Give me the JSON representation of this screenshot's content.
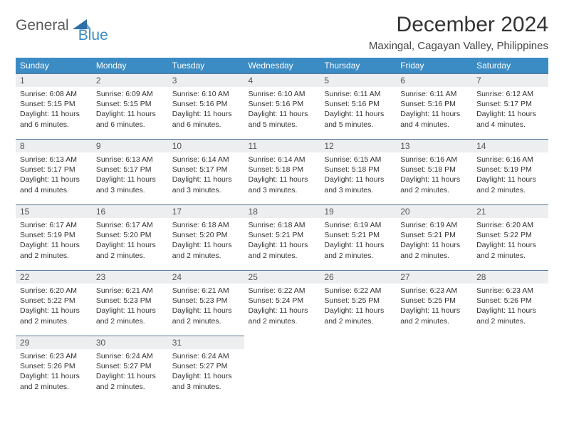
{
  "logo": {
    "part1": "General",
    "part2": "Blue"
  },
  "title": "December 2024",
  "location": "Maxingal, Cagayan Valley, Philippines",
  "colors": {
    "header_bg": "#3b8bc4",
    "header_text": "#ffffff",
    "daynum_bg": "#eceeef",
    "daynum_border": "#5a7a9a",
    "logo_gray": "#5a5a5a",
    "logo_blue": "#3b8bc4"
  },
  "weekdays": [
    "Sunday",
    "Monday",
    "Tuesday",
    "Wednesday",
    "Thursday",
    "Friday",
    "Saturday"
  ],
  "weeks": [
    [
      {
        "n": "1",
        "sr": "6:08 AM",
        "ss": "5:15 PM",
        "dl": "11 hours and 6 minutes."
      },
      {
        "n": "2",
        "sr": "6:09 AM",
        "ss": "5:15 PM",
        "dl": "11 hours and 6 minutes."
      },
      {
        "n": "3",
        "sr": "6:10 AM",
        "ss": "5:16 PM",
        "dl": "11 hours and 6 minutes."
      },
      {
        "n": "4",
        "sr": "6:10 AM",
        "ss": "5:16 PM",
        "dl": "11 hours and 5 minutes."
      },
      {
        "n": "5",
        "sr": "6:11 AM",
        "ss": "5:16 PM",
        "dl": "11 hours and 5 minutes."
      },
      {
        "n": "6",
        "sr": "6:11 AM",
        "ss": "5:16 PM",
        "dl": "11 hours and 4 minutes."
      },
      {
        "n": "7",
        "sr": "6:12 AM",
        "ss": "5:17 PM",
        "dl": "11 hours and 4 minutes."
      }
    ],
    [
      {
        "n": "8",
        "sr": "6:13 AM",
        "ss": "5:17 PM",
        "dl": "11 hours and 4 minutes."
      },
      {
        "n": "9",
        "sr": "6:13 AM",
        "ss": "5:17 PM",
        "dl": "11 hours and 3 minutes."
      },
      {
        "n": "10",
        "sr": "6:14 AM",
        "ss": "5:17 PM",
        "dl": "11 hours and 3 minutes."
      },
      {
        "n": "11",
        "sr": "6:14 AM",
        "ss": "5:18 PM",
        "dl": "11 hours and 3 minutes."
      },
      {
        "n": "12",
        "sr": "6:15 AM",
        "ss": "5:18 PM",
        "dl": "11 hours and 3 minutes."
      },
      {
        "n": "13",
        "sr": "6:16 AM",
        "ss": "5:18 PM",
        "dl": "11 hours and 2 minutes."
      },
      {
        "n": "14",
        "sr": "6:16 AM",
        "ss": "5:19 PM",
        "dl": "11 hours and 2 minutes."
      }
    ],
    [
      {
        "n": "15",
        "sr": "6:17 AM",
        "ss": "5:19 PM",
        "dl": "11 hours and 2 minutes."
      },
      {
        "n": "16",
        "sr": "6:17 AM",
        "ss": "5:20 PM",
        "dl": "11 hours and 2 minutes."
      },
      {
        "n": "17",
        "sr": "6:18 AM",
        "ss": "5:20 PM",
        "dl": "11 hours and 2 minutes."
      },
      {
        "n": "18",
        "sr": "6:18 AM",
        "ss": "5:21 PM",
        "dl": "11 hours and 2 minutes."
      },
      {
        "n": "19",
        "sr": "6:19 AM",
        "ss": "5:21 PM",
        "dl": "11 hours and 2 minutes."
      },
      {
        "n": "20",
        "sr": "6:19 AM",
        "ss": "5:21 PM",
        "dl": "11 hours and 2 minutes."
      },
      {
        "n": "21",
        "sr": "6:20 AM",
        "ss": "5:22 PM",
        "dl": "11 hours and 2 minutes."
      }
    ],
    [
      {
        "n": "22",
        "sr": "6:20 AM",
        "ss": "5:22 PM",
        "dl": "11 hours and 2 minutes."
      },
      {
        "n": "23",
        "sr": "6:21 AM",
        "ss": "5:23 PM",
        "dl": "11 hours and 2 minutes."
      },
      {
        "n": "24",
        "sr": "6:21 AM",
        "ss": "5:23 PM",
        "dl": "11 hours and 2 minutes."
      },
      {
        "n": "25",
        "sr": "6:22 AM",
        "ss": "5:24 PM",
        "dl": "11 hours and 2 minutes."
      },
      {
        "n": "26",
        "sr": "6:22 AM",
        "ss": "5:25 PM",
        "dl": "11 hours and 2 minutes."
      },
      {
        "n": "27",
        "sr": "6:23 AM",
        "ss": "5:25 PM",
        "dl": "11 hours and 2 minutes."
      },
      {
        "n": "28",
        "sr": "6:23 AM",
        "ss": "5:26 PM",
        "dl": "11 hours and 2 minutes."
      }
    ],
    [
      {
        "n": "29",
        "sr": "6:23 AM",
        "ss": "5:26 PM",
        "dl": "11 hours and 2 minutes."
      },
      {
        "n": "30",
        "sr": "6:24 AM",
        "ss": "5:27 PM",
        "dl": "11 hours and 2 minutes."
      },
      {
        "n": "31",
        "sr": "6:24 AM",
        "ss": "5:27 PM",
        "dl": "11 hours and 3 minutes."
      },
      null,
      null,
      null,
      null
    ]
  ],
  "labels": {
    "sunrise": "Sunrise:",
    "sunset": "Sunset:",
    "daylight": "Daylight:"
  }
}
